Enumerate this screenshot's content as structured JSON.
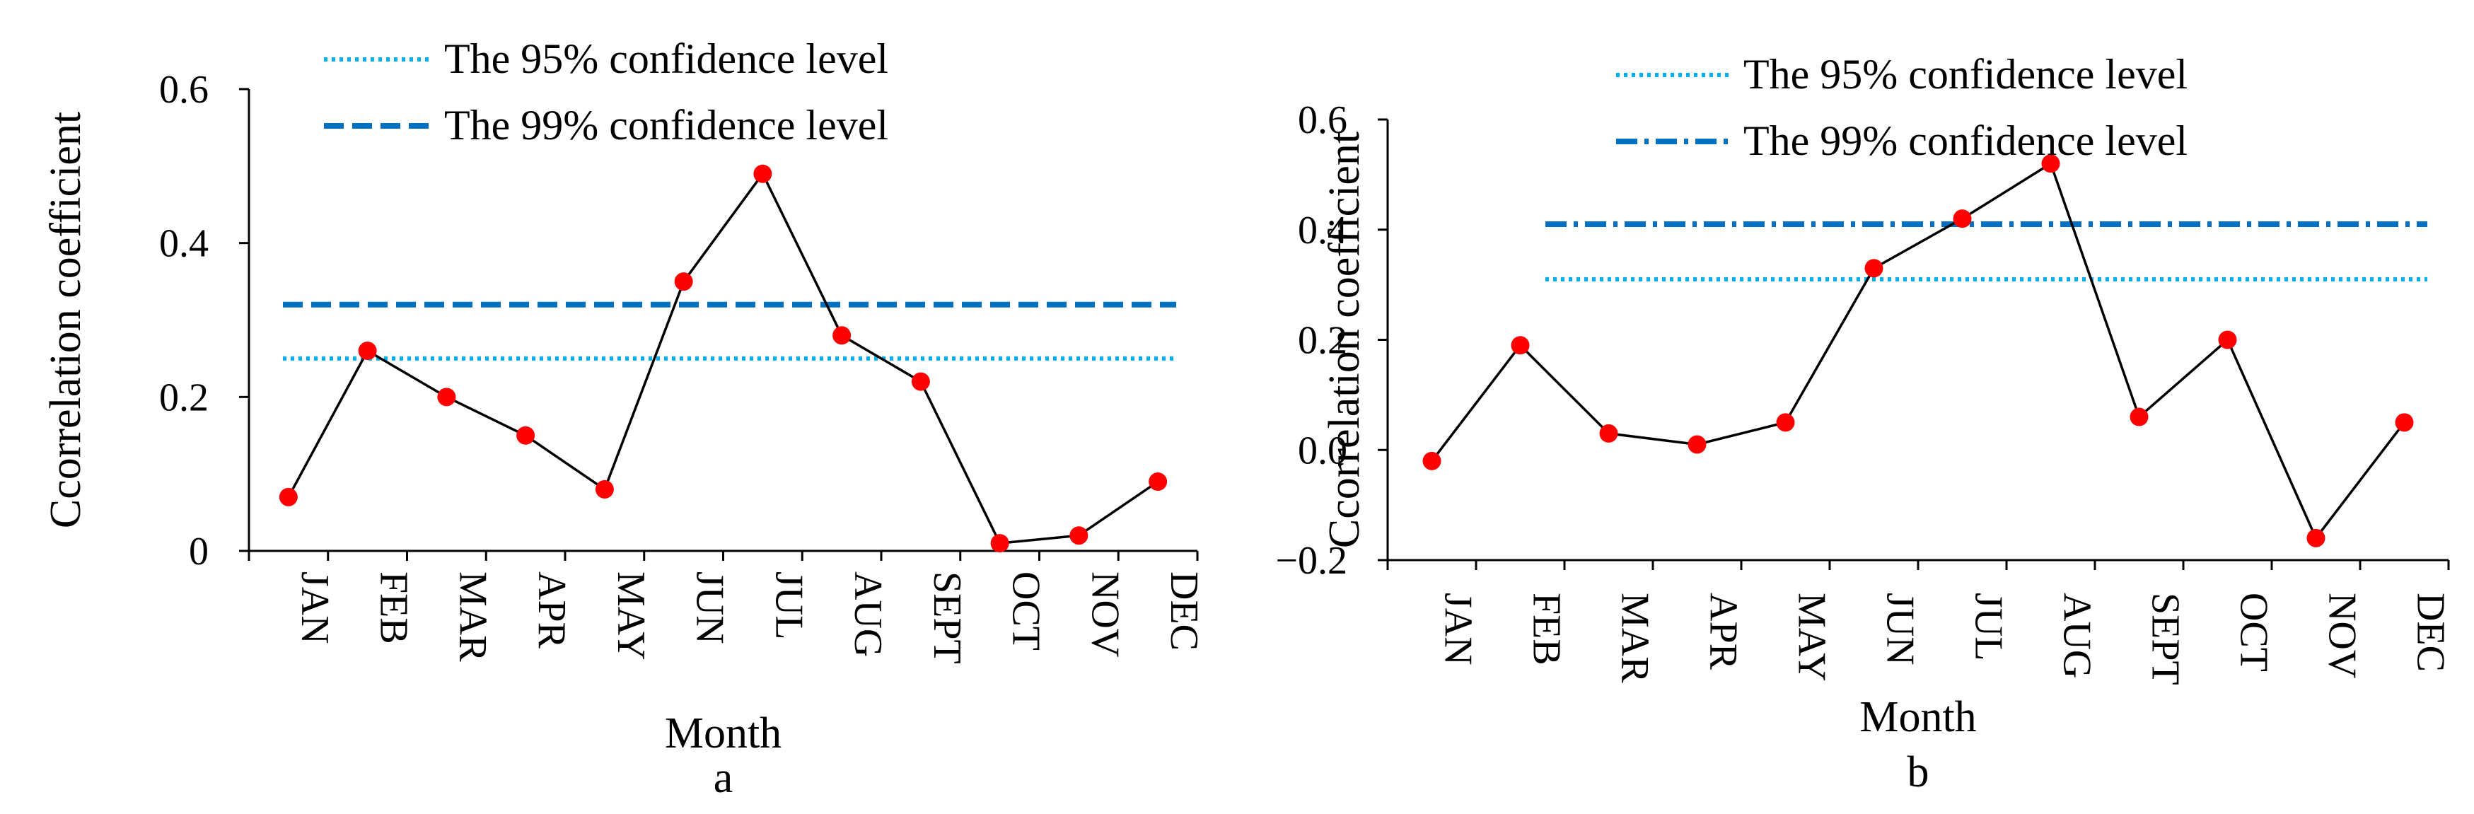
{
  "colors": {
    "ci95": "#00b0f0",
    "ci99": "#0070c0",
    "series_line": "#000000",
    "marker": "#ff0000"
  },
  "chart_data": [
    {
      "type": "line",
      "panel_label": "a",
      "xlabel": "Month",
      "ylabel": "Ccorrelation coefficient",
      "categories": [
        "JAN",
        "FEB",
        "MAR",
        "APR",
        "MAY",
        "JUN",
        "JUL",
        "AUG",
        "SEPT",
        "OCT",
        "NOV",
        "DEC"
      ],
      "values": [
        0.07,
        0.26,
        0.2,
        0.15,
        0.08,
        0.35,
        0.49,
        0.28,
        0.22,
        0.01,
        0.02,
        0.09
      ],
      "ylim": [
        0,
        0.6
      ],
      "yticks": [
        0,
        0.2,
        0.4,
        0.6
      ],
      "ytick_labels": [
        "0",
        "0.2",
        "0.4",
        "0.6"
      ],
      "reference_lines": [
        {
          "name": "The 95% confidence level",
          "value": 0.25,
          "style": "dotted"
        },
        {
          "name": "The 99% confidence level",
          "value": 0.32,
          "style": "dashed"
        }
      ]
    },
    {
      "type": "line",
      "panel_label": "b",
      "xlabel": "Month",
      "ylabel": "Ccorrelation coefficient",
      "categories": [
        "JAN",
        "FEB",
        "MAR",
        "APR",
        "MAY",
        "JUN",
        "JUL",
        "AUG",
        "SEPT",
        "OCT",
        "NOV",
        "DEC"
      ],
      "values": [
        -0.02,
        0.19,
        0.03,
        0.01,
        0.05,
        0.33,
        0.42,
        0.52,
        0.06,
        0.2,
        -0.16,
        0.05
      ],
      "ylim": [
        -0.2,
        0.6
      ],
      "yticks": [
        -0.2,
        0.0,
        0.2,
        0.4,
        0.6
      ],
      "ytick_labels": [
        "−0.2",
        "0.0",
        "0.2",
        "0.4",
        "0.6"
      ],
      "reference_lines": [
        {
          "name": "The 95% confidence level",
          "value": 0.31,
          "style": "dotted"
        },
        {
          "name": "The 99% confidence level",
          "value": 0.41,
          "style": "dashdot"
        }
      ]
    }
  ]
}
